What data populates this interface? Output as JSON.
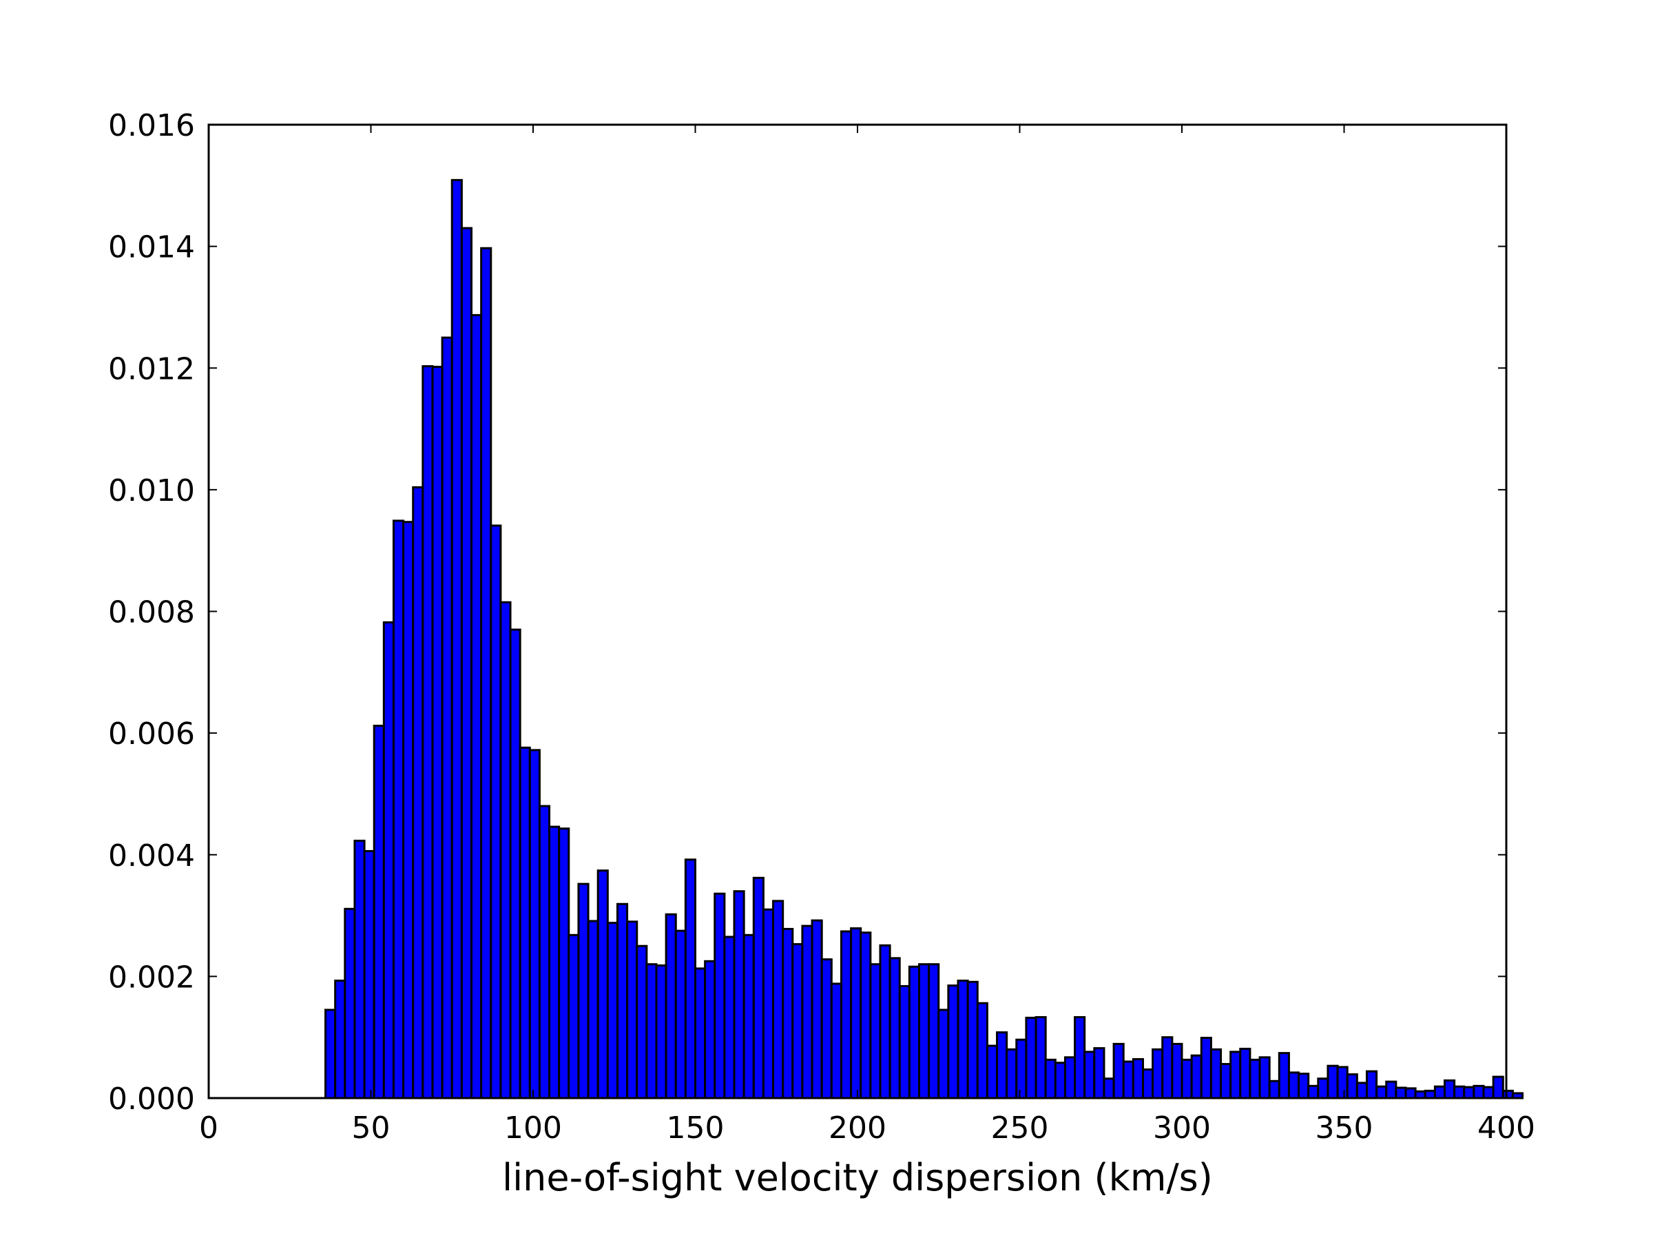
{
  "chart_data": {
    "type": "bar",
    "title": "",
    "xlabel": "line-of-sight velocity dispersion (km/s)",
    "ylabel": "",
    "xlim": [
      0,
      400
    ],
    "ylim": [
      0,
      0.016
    ],
    "x_ticks": [
      "0",
      "50",
      "100",
      "150",
      "200",
      "250",
      "300",
      "350",
      "400"
    ],
    "y_ticks": [
      "0.000",
      "0.002",
      "0.004",
      "0.006",
      "0.008",
      "0.010",
      "0.012",
      "0.014",
      "0.016"
    ],
    "grid": false,
    "legend": "none",
    "bar_color": "#0000ff",
    "bin_start": 36,
    "bin_width": 3,
    "values": [
      0.00145,
      0.00193,
      0.00311,
      0.00423,
      0.00406,
      0.00612,
      0.00782,
      0.00949,
      0.00947,
      0.01004,
      0.01203,
      0.01202,
      0.0125,
      0.01509,
      0.0143,
      0.01287,
      0.01397,
      0.00941,
      0.00815,
      0.0077,
      0.00576,
      0.00572,
      0.0048,
      0.00446,
      0.00443,
      0.00268,
      0.00352,
      0.00291,
      0.00374,
      0.00288,
      0.00319,
      0.0029,
      0.0025,
      0.0022,
      0.00218,
      0.00302,
      0.00275,
      0.00392,
      0.00213,
      0.00225,
      0.00336,
      0.00265,
      0.0034,
      0.00268,
      0.00362,
      0.0031,
      0.00324,
      0.00278,
      0.00253,
      0.00283,
      0.00292,
      0.00228,
      0.00188,
      0.00274,
      0.00279,
      0.00272,
      0.0022,
      0.00251,
      0.0023,
      0.00184,
      0.00216,
      0.0022,
      0.0022,
      0.00145,
      0.00185,
      0.00193,
      0.00191,
      0.00156,
      0.00086,
      0.00108,
      0.0008,
      0.00096,
      0.00132,
      0.00133,
      0.00063,
      0.00058,
      0.00067,
      0.00133,
      0.00076,
      0.00082,
      0.00032,
      0.00089,
      0.0006,
      0.00064,
      0.00047,
      0.0008,
      0.001,
      0.00089,
      0.00063,
      0.0007,
      0.00099,
      0.0008,
      0.00056,
      0.00076,
      0.00081,
      0.00063,
      0.00067,
      0.00028,
      0.00074,
      0.00042,
      0.0004,
      0.0002,
      0.00032,
      0.00053,
      0.00051,
      0.00039,
      0.00025,
      0.00044,
      0.00019,
      0.00027,
      0.00017,
      0.00016,
      0.00011,
      0.00012,
      0.00019,
      0.00029,
      0.00019,
      0.00018,
      0.0002,
      0.00018,
      0.00035,
      0.00012,
      8e-05
    ]
  }
}
